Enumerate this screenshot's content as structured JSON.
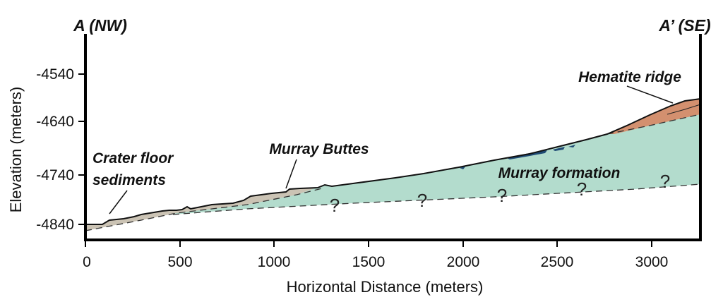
{
  "section": {
    "end_left": "A (NW)",
    "end_right": "A’ (SE)"
  },
  "axes": {
    "xlabel": "Horizontal Distance (meters)",
    "ylabel": "Elevation (meters)",
    "x_ticks": [
      "0",
      "500",
      "1000",
      "1500",
      "2000",
      "2500",
      "3000"
    ],
    "y_ticks": [
      "-4540",
      "-4640",
      "-4740",
      "-4840"
    ],
    "xlim": [
      0,
      3250
    ],
    "ylim": [
      -4870,
      -4460
    ]
  },
  "labels": {
    "hematite": "Hematite ridge",
    "buttes": "Murray Buttes",
    "crater1": "Crater floor",
    "crater2": "sediments",
    "murray": "Murray formation",
    "uncertain": "?"
  },
  "colors": {
    "murray_formation": "#b3dccd",
    "crater_floor_sediments": "#cbc3b4",
    "hematite_ridge": "#d3906f",
    "dark_unit": "#1f4a73"
  }
}
